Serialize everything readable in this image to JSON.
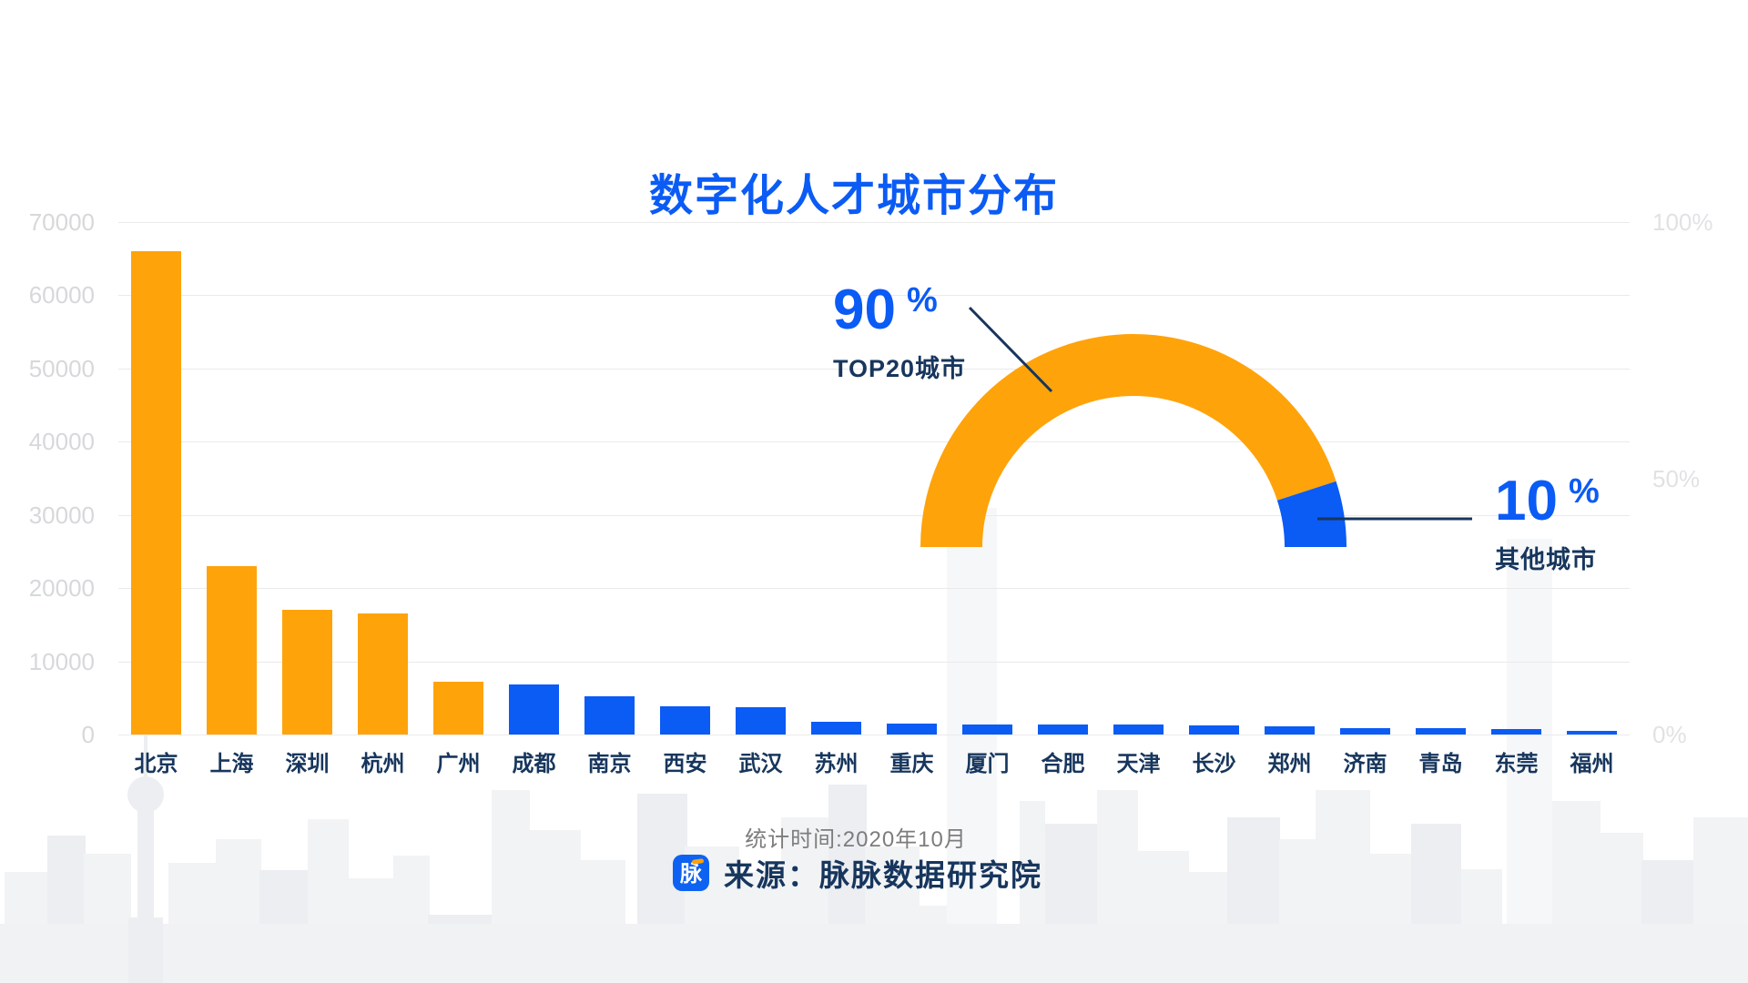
{
  "title": "数字化人才城市分布",
  "colors": {
    "orange": "#FFA30A",
    "blue": "#0B5BF5",
    "title_blue": "#0B5BF5",
    "navy_text": "#17365d",
    "gray_text": "#7d7d7d",
    "left_axis_text": "#d6d8da",
    "right_axis_text": "#e0e2e4",
    "gridline": "#eaeaea",
    "logo_bg": "#0E62F2",
    "logo_accent": "#FFA30A",
    "skyline": "#f1f3f5"
  },
  "chart_data": [
    {
      "type": "bar",
      "title": "数字化人才城市分布",
      "categories": [
        "北京",
        "上海",
        "深圳",
        "杭州",
        "广州",
        "成都",
        "南京",
        "西安",
        "武汉",
        "苏州",
        "重庆",
        "厦门",
        "合肥",
        "天津",
        "长沙",
        "郑州",
        "济南",
        "青岛",
        "东莞",
        "福州"
      ],
      "values": [
        66000,
        23000,
        17000,
        16500,
        7200,
        6800,
        5200,
        3800,
        3700,
        1700,
        1500,
        1400,
        1400,
        1350,
        1200,
        1100,
        900,
        900,
        800,
        500
      ],
      "bar_colors": [
        "#FFA30A",
        "#FFA30A",
        "#FFA30A",
        "#FFA30A",
        "#FFA30A",
        "#0B5BF5",
        "#0B5BF5",
        "#0B5BF5",
        "#0B5BF5",
        "#0B5BF5",
        "#0B5BF5",
        "#0B5BF5",
        "#0B5BF5",
        "#0B5BF5",
        "#0B5BF5",
        "#0B5BF5",
        "#0B5BF5",
        "#0B5BF5",
        "#0B5BF5",
        "#0B5BF5"
      ],
      "xlabel": "",
      "ylabel": "",
      "ylim": [
        0,
        70000
      ],
      "grid": true
    },
    {
      "type": "pie",
      "style": "semicircle_donut",
      "slices": [
        {
          "label": "TOP20城市",
          "value": 90,
          "color": "#FFA30A"
        },
        {
          "label": "其他城市",
          "value": 10,
          "color": "#0B5BF5"
        }
      ]
    }
  ],
  "left_axis": {
    "ticks": [
      "70000",
      "60000",
      "50000",
      "40000",
      "30000",
      "20000",
      "10000",
      "0"
    ]
  },
  "right_axis": {
    "ticks": [
      {
        "label": "100%",
        "frac": 1
      },
      {
        "label": "50%",
        "frac": 0.5
      },
      {
        "label": "0%",
        "frac": 0
      }
    ]
  },
  "callouts": {
    "top20": {
      "value": "90",
      "unit": "%",
      "label": "TOP20城市"
    },
    "others": {
      "value": "10",
      "unit": "%",
      "label": "其他城市"
    }
  },
  "footer": {
    "stats_time": "统计时间:2020年10月",
    "source": "来源：脉脉数据研究院",
    "logo_text": "脉"
  }
}
